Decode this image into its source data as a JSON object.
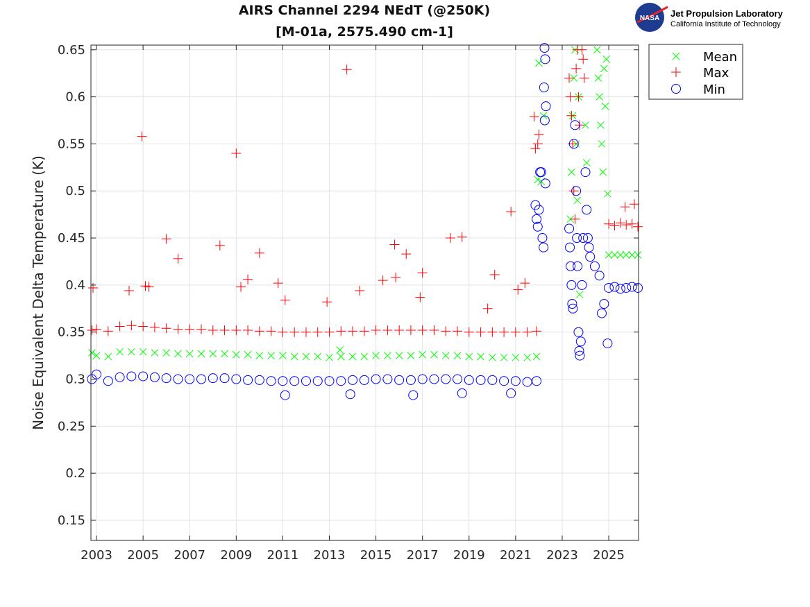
{
  "logo": {
    "org": "Jet Propulsion Laboratory",
    "sub": "California Institute of Technology",
    "badge": "NASA"
  },
  "chart_data": {
    "type": "scatter",
    "title": "AIRS Channel 2294 NEdT (@250K)",
    "subtitle": "[M-01a, 2575.490 cm-1]",
    "xlabel": "",
    "ylabel": "Noise Equivalent Delta Temperature (K)",
    "xlim": [
      2002.76,
      2026.28
    ],
    "ylim": [
      0.1286,
      0.655
    ],
    "xticks": [
      2003,
      2005,
      2007,
      2009,
      2011,
      2013,
      2015,
      2017,
      2019,
      2021,
      2023,
      2025
    ],
    "yticks": [
      0.15,
      0.2,
      0.25,
      0.3,
      0.35,
      0.4,
      0.45,
      0.5,
      0.55,
      0.6,
      0.65
    ],
    "ytick_labels": [
      "0.15",
      "0.2",
      "0.25",
      "0.3",
      "0.35",
      "0.4",
      "0.45",
      "0.5",
      "0.55",
      "0.6",
      "0.65"
    ],
    "grid": true,
    "legend_position": "outside-top-right",
    "series": [
      {
        "name": "Mean",
        "marker": "x",
        "color": "#00ff00",
        "x": [
          2002.8,
          2003.0,
          2003.5,
          2004.0,
          2004.5,
          2005.0,
          2005.5,
          2006,
          2006.5,
          2007,
          2007.5,
          2008,
          2008.5,
          2009,
          2009.5,
          2010,
          2010.5,
          2011,
          2011.5,
          2012,
          2012.5,
          2013,
          2013.45,
          2013.5,
          2014,
          2014.5,
          2015,
          2015.5,
          2016,
          2016.5,
          2017,
          2017.5,
          2018,
          2018.5,
          2019,
          2019.5,
          2020,
          2020.5,
          2021,
          2021.5,
          2021.9,
          2021.95,
          2022.0,
          2022.1,
          2022.2,
          2023.35,
          2023.4,
          2023.45,
          2023.5,
          2023.55,
          2023.6,
          2023.65,
          2023.7,
          2023.75,
          2024.0,
          2024.05,
          2024.5,
          2024.55,
          2024.6,
          2024.65,
          2024.7,
          2024.75,
          2024.8,
          2024.85,
          2024.9,
          2024.95,
          2025.0,
          2025.25,
          2025.5,
          2025.75,
          2026.0,
          2026.25
        ],
        "y": [
          0.328,
          0.325,
          0.324,
          0.329,
          0.329,
          0.329,
          0.328,
          0.328,
          0.327,
          0.327,
          0.327,
          0.327,
          0.327,
          0.326,
          0.326,
          0.325,
          0.325,
          0.325,
          0.324,
          0.324,
          0.324,
          0.323,
          0.331,
          0.324,
          0.324,
          0.324,
          0.325,
          0.325,
          0.325,
          0.325,
          0.326,
          0.326,
          0.325,
          0.325,
          0.324,
          0.324,
          0.323,
          0.323,
          0.323,
          0.323,
          0.324,
          0.512,
          0.636,
          0.51,
          0.58,
          0.47,
          0.52,
          0.58,
          0.62,
          0.65,
          0.55,
          0.49,
          0.6,
          0.39,
          0.57,
          0.53,
          0.65,
          0.62,
          0.6,
          0.57,
          0.55,
          0.52,
          0.63,
          0.59,
          0.64,
          0.497,
          0.432,
          0.432,
          0.432,
          0.432,
          0.432,
          0.432
        ]
      },
      {
        "name": "Max",
        "marker": "+",
        "color": "#ff0000",
        "x": [
          2002.8,
          2003.0,
          2003.5,
          2004.0,
          2004.5,
          2005.0,
          2005.5,
          2006,
          2006.5,
          2007,
          2007.5,
          2008,
          2008.5,
          2009,
          2009.5,
          2010,
          2010.5,
          2011,
          2011.5,
          2012,
          2012.5,
          2013,
          2013.5,
          2014,
          2014.5,
          2015,
          2015.5,
          2016,
          2016.5,
          2017,
          2017.5,
          2018,
          2018.5,
          2019,
          2019.5,
          2020,
          2020.5,
          2021,
          2021.5,
          2021.9,
          2002.85,
          2004.4,
          2004.95,
          2005.1,
          2005.25,
          2006.0,
          2006.5,
          2008.3,
          2009.0,
          2009.2,
          2009.5,
          2010.0,
          2010.8,
          2011.1,
          2012.9,
          2013.75,
          2014.3,
          2015.3,
          2015.8,
          2015.85,
          2016.3,
          2017.0,
          2016.9,
          2018.2,
          2018.7,
          2019.8,
          2020.1,
          2020.8,
          2021.1,
          2021.4,
          2021.8,
          2021.85,
          2021.95,
          2022.0,
          2023.3,
          2023.35,
          2023.4,
          2023.45,
          2023.5,
          2023.55,
          2023.6,
          2023.65,
          2023.7,
          2023.75,
          2023.85,
          2023.9,
          2023.95,
          2025.0,
          2025.25,
          2025.5,
          2025.7,
          2025.75,
          2026.0,
          2026.1,
          2026.25
        ],
        "y": [
          0.352,
          0.353,
          0.351,
          0.356,
          0.357,
          0.356,
          0.355,
          0.354,
          0.353,
          0.353,
          0.353,
          0.352,
          0.352,
          0.352,
          0.352,
          0.351,
          0.351,
          0.35,
          0.35,
          0.35,
          0.35,
          0.35,
          0.351,
          0.351,
          0.351,
          0.352,
          0.352,
          0.352,
          0.352,
          0.352,
          0.352,
          0.351,
          0.351,
          0.35,
          0.35,
          0.35,
          0.35,
          0.35,
          0.35,
          0.351,
          0.397,
          0.394,
          0.558,
          0.399,
          0.398,
          0.449,
          0.428,
          0.442,
          0.54,
          0.398,
          0.406,
          0.434,
          0.402,
          0.384,
          0.382,
          0.629,
          0.394,
          0.405,
          0.443,
          0.408,
          0.433,
          0.413,
          0.387,
          0.45,
          0.451,
          0.375,
          0.411,
          0.478,
          0.395,
          0.402,
          0.579,
          0.545,
          0.55,
          0.56,
          0.62,
          0.6,
          0.58,
          0.55,
          0.5,
          0.47,
          0.63,
          0.65,
          0.6,
          0.57,
          0.65,
          0.64,
          0.62,
          0.465,
          0.463,
          0.466,
          0.483,
          0.464,
          0.465,
          0.486,
          0.462
        ]
      },
      {
        "name": "Min",
        "marker": "o",
        "color": "#0000ff",
        "x": [
          2002.8,
          2003.0,
          2003.5,
          2004.0,
          2004.5,
          2005.0,
          2005.5,
          2006,
          2006.5,
          2007,
          2007.5,
          2008,
          2008.5,
          2009,
          2009.5,
          2010,
          2010.5,
          2011,
          2011.5,
          2012,
          2012.5,
          2013,
          2013.5,
          2014,
          2014.5,
          2015,
          2015.5,
          2016,
          2016.5,
          2017,
          2017.5,
          2018,
          2018.5,
          2019,
          2019.5,
          2020,
          2020.5,
          2021,
          2021.5,
          2021.9,
          2011.1,
          2013.9,
          2016.6,
          2018.7,
          2020.8,
          2021.85,
          2021.9,
          2021.95,
          2022.0,
          2022.05,
          2022.1,
          2022.15,
          2022.2,
          2022.25,
          2022.22,
          2022.27,
          2022.24,
          2022.3,
          2022.28,
          2023.3,
          2023.33,
          2023.36,
          2023.4,
          2023.43,
          2023.46,
          2023.5,
          2023.55,
          2023.6,
          2023.63,
          2023.66,
          2023.7,
          2023.73,
          2023.76,
          2023.8,
          2023.85,
          2023.9,
          2024.0,
          2024.05,
          2024.1,
          2024.15,
          2024.2,
          2024.4,
          2024.6,
          2024.7,
          2024.8,
          2024.95,
          2025.0,
          2025.25,
          2025.5,
          2025.75,
          2026.0,
          2026.25
        ],
        "y": [
          0.3,
          0.305,
          0.298,
          0.302,
          0.303,
          0.303,
          0.302,
          0.301,
          0.3,
          0.3,
          0.3,
          0.301,
          0.301,
          0.3,
          0.299,
          0.299,
          0.298,
          0.298,
          0.298,
          0.298,
          0.298,
          0.298,
          0.298,
          0.299,
          0.299,
          0.3,
          0.3,
          0.299,
          0.299,
          0.3,
          0.3,
          0.3,
          0.3,
          0.299,
          0.299,
          0.299,
          0.298,
          0.298,
          0.297,
          0.298,
          0.283,
          0.284,
          0.283,
          0.285,
          0.285,
          0.485,
          0.47,
          0.462,
          0.48,
          0.52,
          0.52,
          0.45,
          0.44,
          0.575,
          0.61,
          0.64,
          0.652,
          0.59,
          0.508,
          0.46,
          0.44,
          0.42,
          0.4,
          0.38,
          0.375,
          0.55,
          0.57,
          0.5,
          0.45,
          0.42,
          0.35,
          0.33,
          0.325,
          0.34,
          0.4,
          0.45,
          0.52,
          0.48,
          0.45,
          0.44,
          0.43,
          0.42,
          0.41,
          0.37,
          0.38,
          0.338,
          0.397,
          0.398,
          0.396,
          0.397,
          0.398,
          0.397
        ]
      }
    ]
  }
}
